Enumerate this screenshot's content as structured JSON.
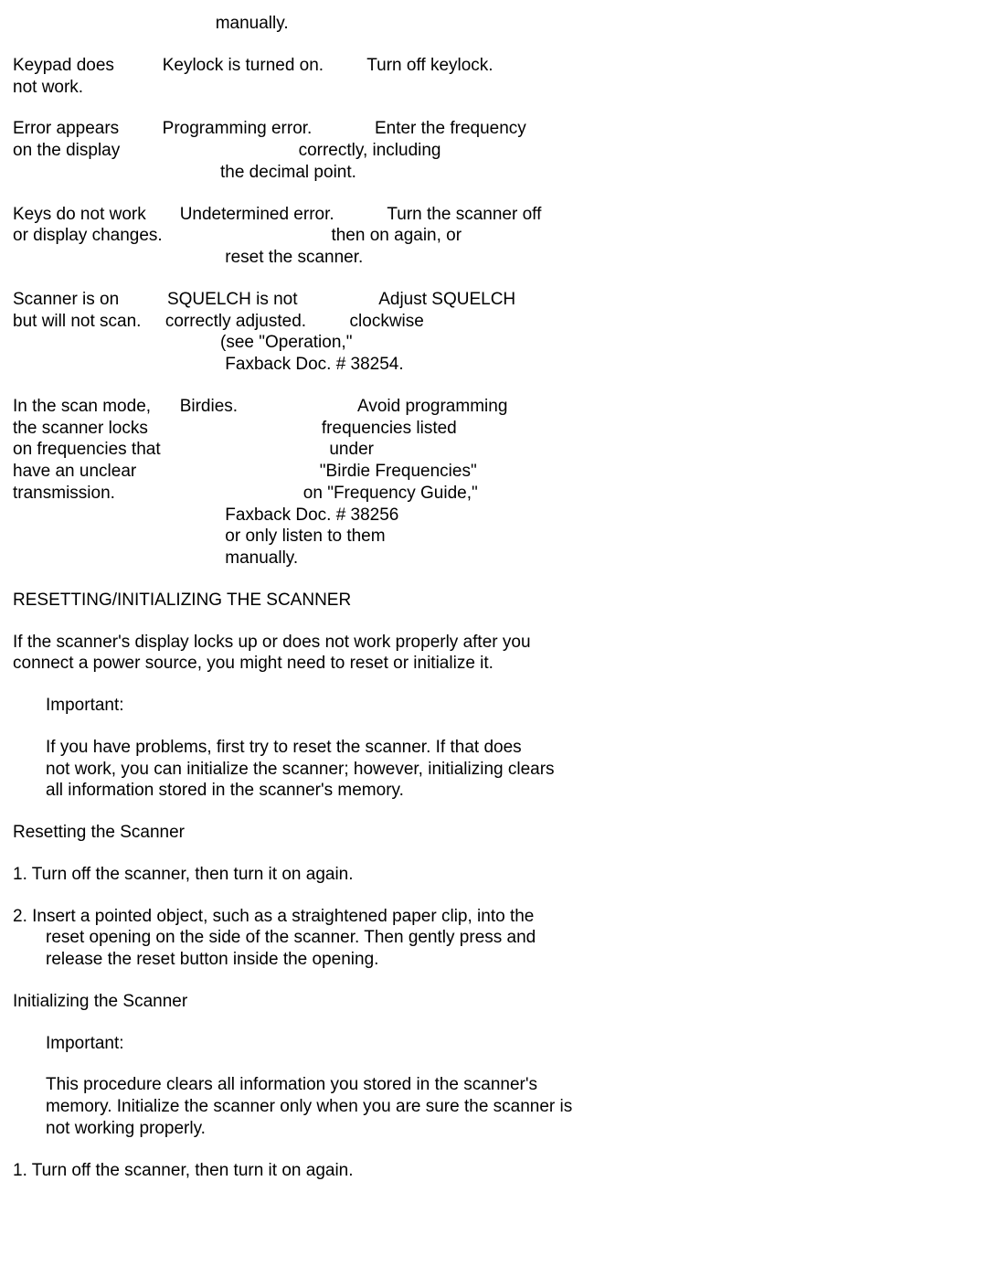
{
  "top_fragment": "                                          manually.",
  "troubleshoot": [
    {
      "lines": [
        "Keypad does          Keylock is turned on.         Turn off keylock.",
        "not work."
      ]
    },
    {
      "lines": [
        "Error appears         Programming error.             Enter the frequency",
        "on the display                                     correctly, including",
        "                                           the decimal point."
      ]
    },
    {
      "lines": [
        "Keys do not work       Undetermined error.           Turn the scanner off",
        "or display changes.                                   then on again, or",
        "                                            reset the scanner."
      ]
    },
    {
      "lines": [
        "Scanner is on          SQUELCH is not                 Adjust SQUELCH",
        "but will not scan.     correctly adjusted.         clockwise",
        "                                           (see \"Operation,\"",
        "                                            Faxback Doc. # 38254."
      ]
    },
    {
      "lines": [
        "In the scan mode,      Birdies.                         Avoid programming",
        "the scanner locks                                    frequencies listed",
        "on frequencies that                                   under",
        "have an unclear                                      \"Birdie Frequencies\"",
        "transmission.                                       on \"Frequency Guide,\"",
        "                                            Faxback Doc. # 38256",
        "                                            or only listen to them",
        "                                            manually."
      ]
    }
  ],
  "reset_heading": "RESETTING/INITIALIZING THE SCANNER",
  "reset_intro_l1": "If the scanner's display locks up or does not work properly after you",
  "reset_intro_l2": "connect a power source, you might need to reset or initialize it.",
  "important_label": "Important:",
  "important1_l1": "If you have problems, first try to reset the scanner.  If that does",
  "important1_l2": "not work, you can initialize the scanner; however, initializing clears",
  "important1_l3": "all information stored in the scanner's memory.",
  "resetting_heading": "Resetting the Scanner",
  "reset_step1": "1.  Turn off the scanner, then turn it on again.",
  "reset_step2_l1": "2.  Insert a pointed object, such as a straightened paper clip, into the",
  "reset_step2_l2": "reset opening on the side of the scanner.  Then gently press and",
  "reset_step2_l3": "release the reset button inside the opening.",
  "init_heading": "Initializing the Scanner",
  "important2_l1": "This procedure clears all information you stored in the scanner's",
  "important2_l2": "memory.  Initialize the scanner only when you are sure the scanner is",
  "important2_l3": "not working properly.",
  "init_step1": "1.  Turn off the scanner, then turn it on again."
}
